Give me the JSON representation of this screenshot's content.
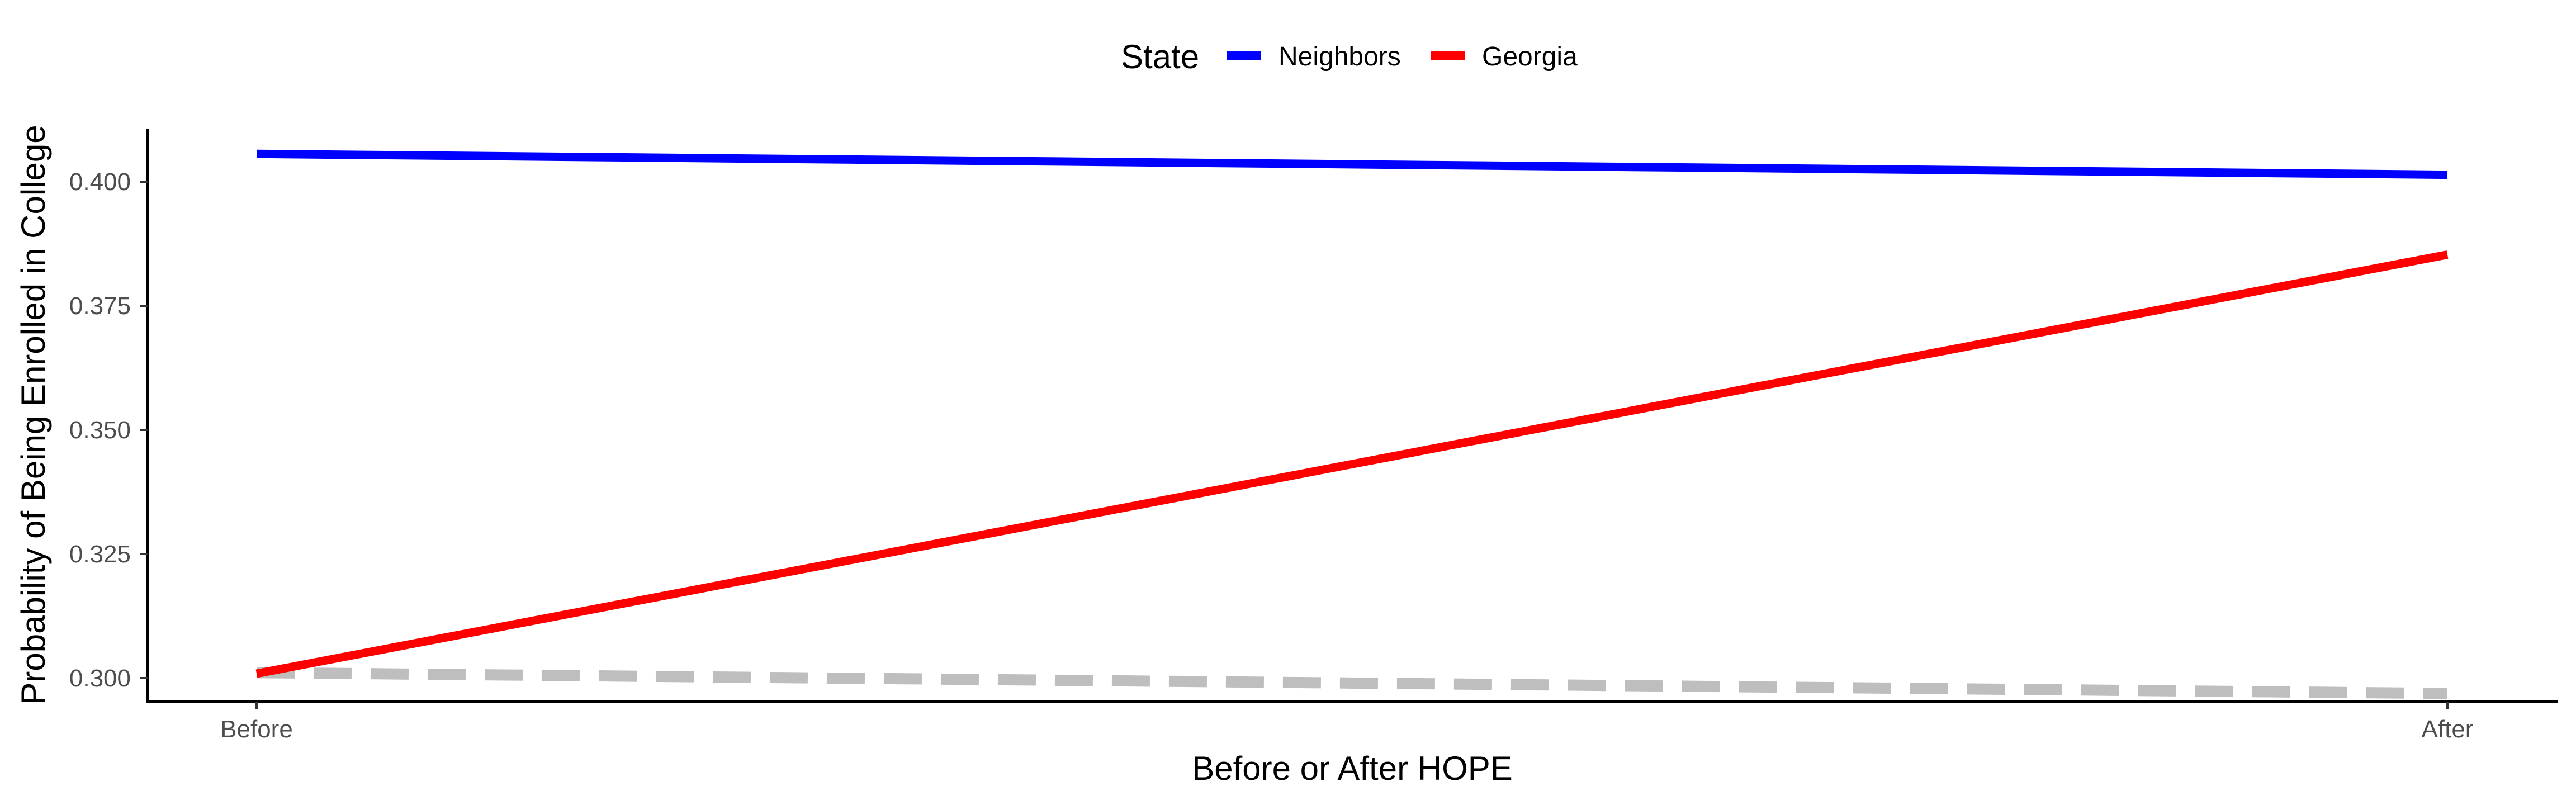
{
  "chart_data": {
    "type": "line",
    "title": "",
    "xlabel": "Before or After HOPE",
    "ylabel": "Probability of Being Enrolled in College",
    "categories": [
      "Before",
      "After"
    ],
    "ylim": [
      0.2955,
      0.4105
    ],
    "yticks": [
      0.3,
      0.325,
      0.35,
      0.375,
      0.4
    ],
    "ytick_labels": [
      "0.300",
      "0.325",
      "0.350",
      "0.375",
      "0.400"
    ],
    "grid": false,
    "legend": {
      "title": "State",
      "placement": "top-center",
      "entries": [
        "Neighbors",
        "Georgia"
      ]
    },
    "series": [
      {
        "name": "Neighbors",
        "values": [
          0.4056,
          0.4014
        ],
        "color": "#0000FF",
        "style": "solid"
      },
      {
        "name": "Georgia",
        "values": [
          0.3009,
          0.3853
        ],
        "color": "#FF0000",
        "style": "solid"
      },
      {
        "name": "",
        "values": [
          0.3011,
          0.2969
        ],
        "color": "#BEBEBE",
        "style": "dashed"
      }
    ]
  }
}
